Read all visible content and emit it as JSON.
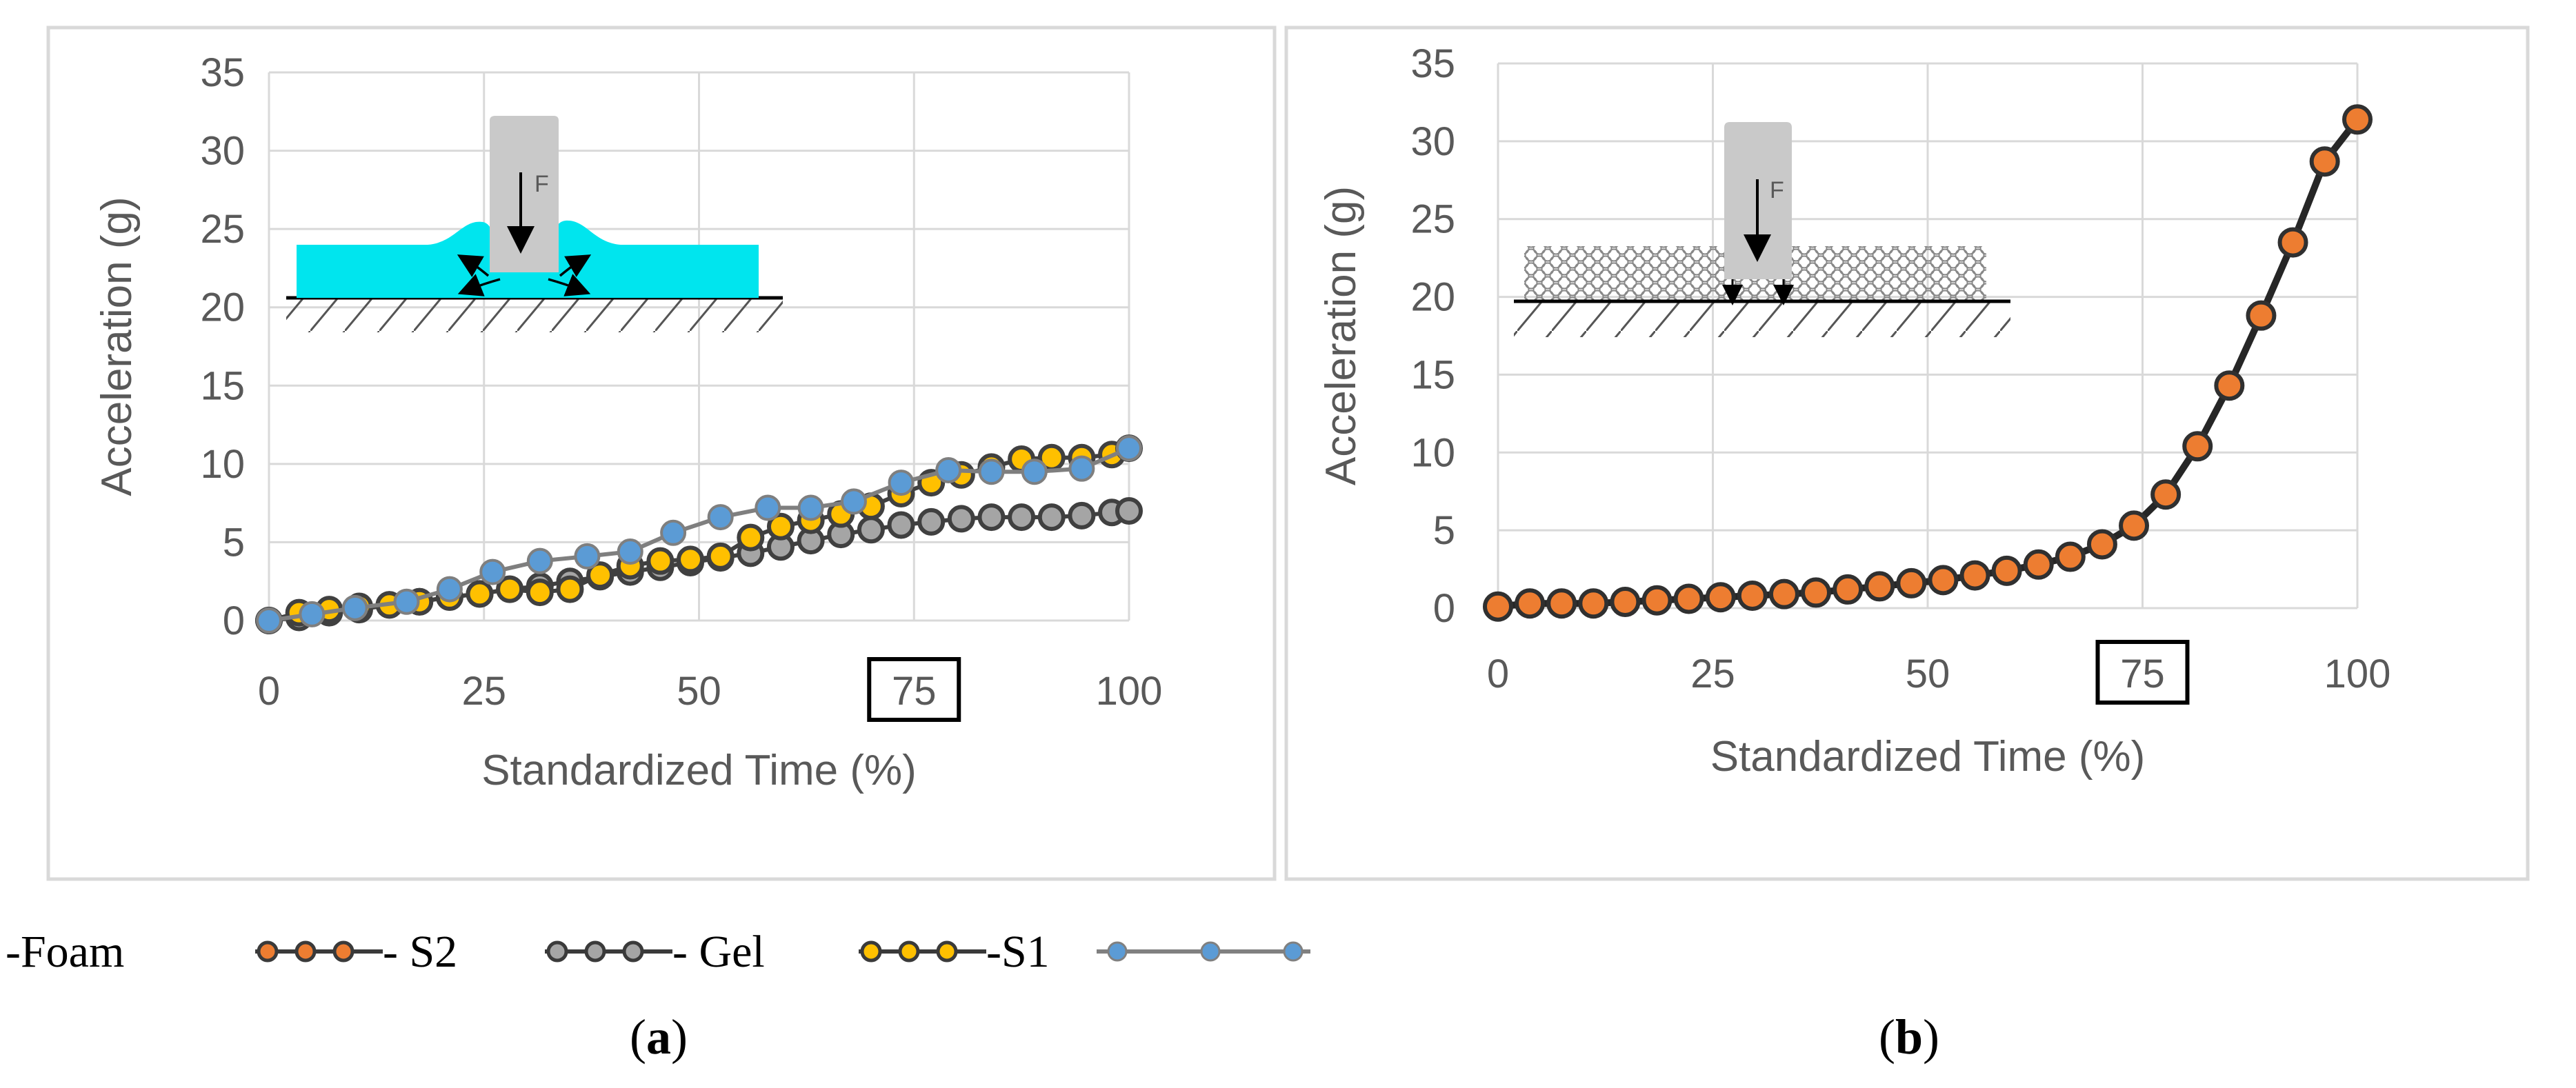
{
  "legend": {
    "items": [
      {
        "label": "-Foam",
        "color": "#ED7D31"
      },
      {
        "label": "- S2",
        "color": "#A5A5A5"
      },
      {
        "label": "- Gel",
        "color": "#FFC000"
      },
      {
        "label": "-S1",
        "color": "#5B9BD5"
      }
    ]
  },
  "captions": {
    "a_prefix": "(",
    "a_letter": "a",
    "a_suffix": ")",
    "b_prefix": "(",
    "b_letter": "b",
    "b_suffix": ")"
  },
  "diagram_labels": {
    "force_a": "F",
    "force_b": "F"
  },
  "chart_data": [
    {
      "type": "line",
      "panel": "a",
      "xlabel": "Standardized Time (%)",
      "ylabel": "Acceleration (g)",
      "xlim": [
        0,
        100
      ],
      "ylim": [
        0,
        35
      ],
      "xticks": [
        "0",
        "25",
        "50",
        "75",
        "100"
      ],
      "yticks": [
        "0",
        "5",
        "10",
        "15",
        "20",
        "25",
        "30",
        "35"
      ],
      "highlighted_tick": "75",
      "grid": true,
      "legend_position": "bottom-left",
      "series": [
        {
          "name": "S2",
          "color": "#A5A5A5",
          "x": [
            0,
            3.5,
            7,
            10.5,
            14,
            17.5,
            21,
            24.5,
            28,
            31.5,
            35,
            38.5,
            42,
            45.5,
            49,
            52.5,
            56,
            59.5,
            63,
            66.5,
            70,
            73.5,
            77,
            80.5,
            84,
            87.5,
            91,
            94.5,
            98,
            100
          ],
          "values": [
            0,
            0.2,
            0.5,
            0.7,
            1,
            1.2,
            1.5,
            1.7,
            2,
            2.2,
            2.5,
            2.8,
            3.1,
            3.4,
            3.7,
            4,
            4.3,
            4.7,
            5.1,
            5.5,
            5.8,
            6.1,
            6.3,
            6.5,
            6.6,
            6.6,
            6.6,
            6.7,
            6.9,
            7
          ]
        },
        {
          "name": "Gel",
          "color": "#FFC000",
          "x": [
            0,
            3.5,
            7,
            10.5,
            14,
            17.5,
            21,
            24.5,
            28,
            31.5,
            35,
            38.5,
            42,
            45.5,
            49,
            52.5,
            56,
            59.5,
            63,
            66.5,
            70,
            73.5,
            77,
            80.5,
            84,
            87.5,
            91,
            94.5,
            98,
            100
          ],
          "values": [
            0,
            0.5,
            0.7,
            0.9,
            1,
            1.2,
            1.5,
            1.7,
            2,
            1.8,
            2,
            2.9,
            3.5,
            3.8,
            3.9,
            4.1,
            5.3,
            6,
            6.4,
            6.8,
            7.3,
            8.1,
            8.8,
            9.3,
            9.8,
            10.3,
            10.4,
            10.4,
            10.6,
            11
          ]
        },
        {
          "name": "S1",
          "color": "#5B9BD5",
          "x": [
            0,
            5,
            10,
            16,
            21,
            26,
            31.5,
            37,
            42,
            47,
            52.5,
            58,
            63,
            68,
            73.5,
            79,
            84,
            89,
            94.5,
            100
          ],
          "values": [
            0,
            0.4,
            0.8,
            1.2,
            2,
            3.1,
            3.8,
            4.1,
            4.4,
            5.6,
            6.6,
            7.2,
            7.2,
            7.6,
            8.8,
            9.6,
            9.5,
            9.5,
            9.7,
            11
          ]
        }
      ]
    },
    {
      "type": "line",
      "panel": "b",
      "xlabel": "Standardized Time (%)",
      "ylabel": "Acceleration (g)",
      "xlim": [
        0,
        100
      ],
      "ylim": [
        0,
        35
      ],
      "xticks": [
        "0",
        "25",
        "50",
        "75",
        "100"
      ],
      "yticks": [
        "0",
        "5",
        "10",
        "15",
        "20",
        "25",
        "30",
        "35"
      ],
      "highlighted_tick": "75",
      "grid": true,
      "series": [
        {
          "name": "Foam",
          "color": "#ED7D31",
          "x": [
            0,
            3.7,
            7.4,
            11.1,
            14.8,
            18.5,
            22.2,
            25.9,
            29.6,
            33.3,
            37,
            40.7,
            44.4,
            48.1,
            51.8,
            55.5,
            59.2,
            62.9,
            66.6,
            70.3,
            74,
            77.7,
            81.4,
            85.1,
            88.8,
            92.5,
            96.2,
            100
          ],
          "values": [
            0.1,
            0.3,
            0.3,
            0.3,
            0.4,
            0.5,
            0.6,
            0.7,
            0.8,
            0.9,
            1,
            1.2,
            1.4,
            1.6,
            1.8,
            2.1,
            2.4,
            2.8,
            3.3,
            4.1,
            5.3,
            7.3,
            10.4,
            14.3,
            18.8,
            23.5,
            28.7,
            31.4
          ]
        }
      ]
    }
  ]
}
